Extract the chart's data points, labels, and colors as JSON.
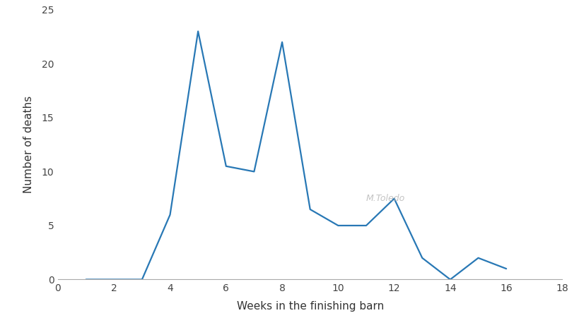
{
  "x": [
    1,
    2,
    3,
    4,
    5,
    6,
    7,
    8,
    9,
    10,
    11,
    12,
    13,
    14,
    15,
    16
  ],
  "y": [
    0,
    0,
    0,
    6,
    23,
    10.5,
    10,
    22,
    6.5,
    5,
    5,
    7.5,
    2,
    0,
    2,
    1
  ],
  "line_color": "#2878b5",
  "line_width": 1.6,
  "xlabel": "Weeks in the finishing barn",
  "ylabel": "Number of deaths",
  "xlim": [
    0,
    18
  ],
  "ylim": [
    0,
    25
  ],
  "xticks": [
    0,
    2,
    4,
    6,
    8,
    10,
    12,
    14,
    16,
    18
  ],
  "yticks": [
    0,
    5,
    10,
    15,
    20,
    25
  ],
  "background_color": "#ffffff",
  "tick_label_fontsize": 10,
  "axis_label_fontsize": 11
}
